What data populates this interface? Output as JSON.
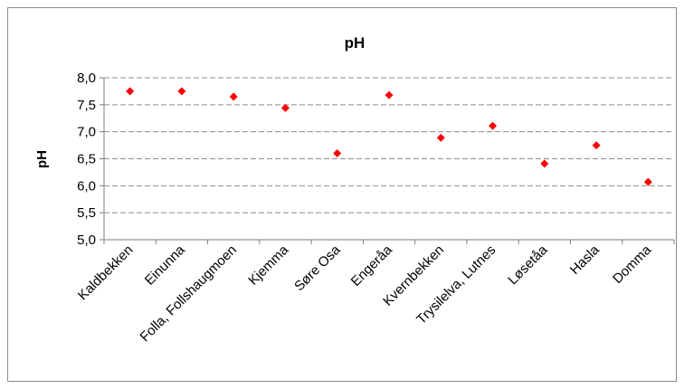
{
  "chart_data": {
    "type": "scatter",
    "title": "pH",
    "xlabel": "",
    "ylabel": "pH",
    "ylim": [
      5.0,
      8.0
    ],
    "ytick_step": 0.5,
    "yticks": [
      "5,0",
      "5,5",
      "6,0",
      "6,5",
      "7,0",
      "7,5",
      "8,0"
    ],
    "grid": "horizontal dashed",
    "legend": "none",
    "categories": [
      "Kaldbekken",
      "Einunna",
      "Folla, Follshaugmoen",
      "Kjemma",
      "Søre Osa",
      "Engeråa",
      "Kvernbekken",
      "Trysilelva, Lutnes",
      "Løsetåa",
      "Hasla",
      "Domma"
    ],
    "series": [
      {
        "values": [
          7.75,
          7.75,
          7.65,
          7.44,
          6.6,
          7.68,
          6.89,
          7.11,
          6.41,
          6.75,
          6.07
        ],
        "color": "#ff0000",
        "marker": "diamond"
      }
    ]
  }
}
